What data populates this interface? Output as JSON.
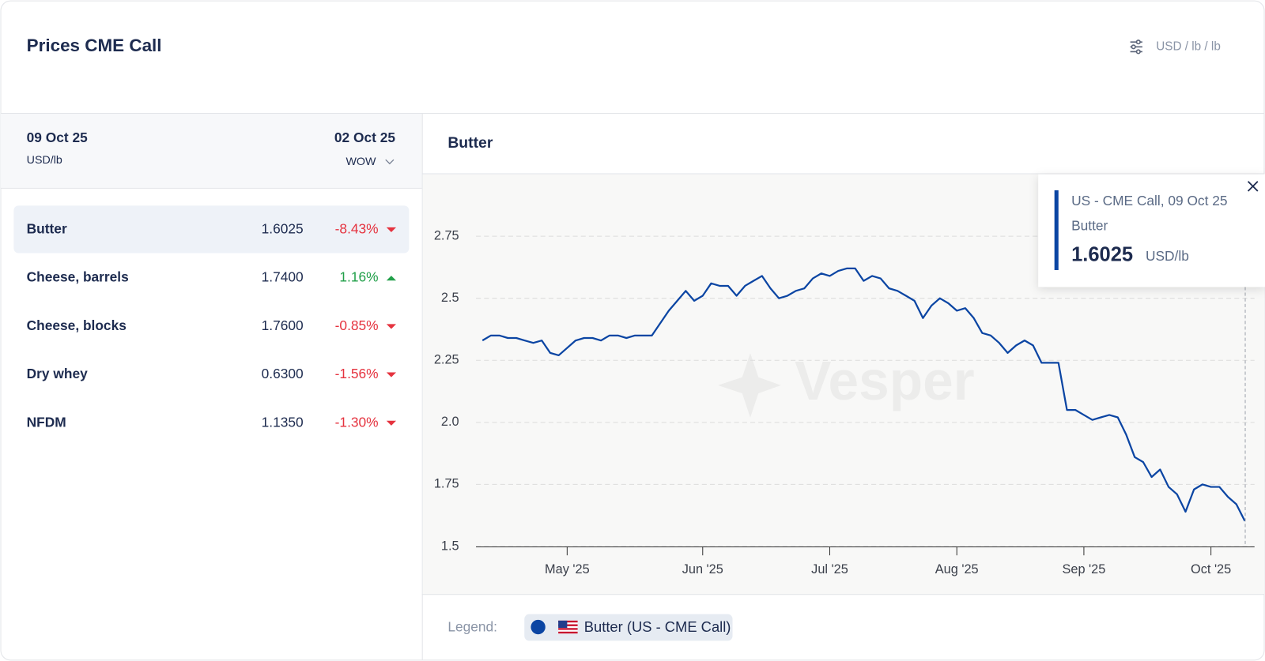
{
  "header": {
    "title": "Prices CME Call",
    "units": "USD / lb / lb"
  },
  "table": {
    "header": {
      "date": "09 Oct 25",
      "unit": "USD/lb",
      "compare_date": "02 Oct 25",
      "compare_mode": "WOW"
    },
    "rows": [
      {
        "name": "Butter",
        "price": "1.6025",
        "change": "-8.43%"
      },
      {
        "name": "Cheese, barrels",
        "price": "1.7400",
        "change": "1.16%"
      },
      {
        "name": "Cheese, blocks",
        "price": "1.7600",
        "change": "-0.85%"
      },
      {
        "name": "Dry whey",
        "price": "0.6300",
        "change": "-1.56%"
      },
      {
        "name": "NFDM",
        "price": "1.1350",
        "change": "-1.30%"
      }
    ]
  },
  "watermark": "Vesper",
  "chart_data": {
    "type": "line",
    "title": "Butter",
    "legend_label": "Legend:",
    "categories": [
      null,
      null,
      null,
      null,
      null,
      null,
      null,
      null,
      null,
      null,
      "May '25",
      null,
      null,
      null,
      null,
      null,
      null,
      null,
      null,
      null,
      null,
      null,
      null,
      null,
      null,
      null,
      "Jun '25",
      null,
      null,
      null,
      null,
      null,
      null,
      null,
      null,
      null,
      null,
      null,
      null,
      null,
      null,
      "Jul '25",
      null,
      null,
      null,
      null,
      null,
      null,
      null,
      null,
      null,
      null,
      null,
      null,
      null,
      null,
      "Aug '25",
      null,
      null,
      null,
      null,
      null,
      null,
      null,
      null,
      null,
      null,
      null,
      null,
      null,
      null,
      "Sep '25",
      null,
      null,
      null,
      null,
      null,
      null,
      null,
      null,
      null,
      null,
      null,
      null,
      null,
      null,
      "Oct '25",
      null,
      null,
      null,
      null
    ],
    "series": [
      {
        "name": "Butter (US - CME Call)",
        "color": "#0b45a3",
        "values": [
          2.33,
          2.35,
          2.35,
          2.34,
          2.34,
          2.33,
          2.32,
          2.33,
          2.28,
          2.27,
          2.3,
          2.33,
          2.34,
          2.34,
          2.33,
          2.35,
          2.35,
          2.34,
          2.35,
          2.35,
          2.35,
          2.4,
          2.45,
          2.49,
          2.53,
          2.49,
          2.51,
          2.56,
          2.55,
          2.55,
          2.51,
          2.55,
          2.57,
          2.59,
          2.54,
          2.5,
          2.51,
          2.53,
          2.54,
          2.58,
          2.6,
          2.59,
          2.61,
          2.62,
          2.62,
          2.57,
          2.59,
          2.58,
          2.54,
          2.53,
          2.51,
          2.49,
          2.42,
          2.47,
          2.5,
          2.48,
          2.45,
          2.46,
          2.42,
          2.36,
          2.35,
          2.32,
          2.28,
          2.31,
          2.33,
          2.31,
          2.24,
          2.24,
          2.24,
          2.05,
          2.05,
          2.03,
          2.01,
          2.02,
          2.03,
          2.02,
          1.95,
          1.86,
          1.84,
          1.78,
          1.81,
          1.74,
          1.71,
          1.64,
          1.73,
          1.75,
          1.74,
          1.74,
          1.7,
          1.67,
          1.6025
        ]
      }
    ],
    "ylim": [
      1.5,
      3.0
    ],
    "yticks": [
      1.5,
      1.75,
      {
        "value": 2,
        "label": "2.0"
      },
      2.25,
      2.5,
      2.75
    ],
    "grid": true,
    "tooltip": {
      "title": "US - CME Call, 09 Oct 25",
      "label": "Butter",
      "value": 1.6025,
      "unit": "USD/lb"
    }
  }
}
